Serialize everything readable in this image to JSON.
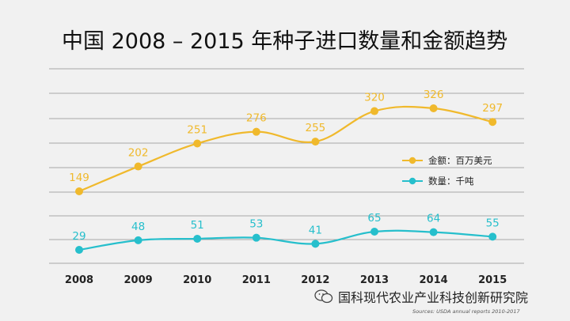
{
  "title": "中国 2008 – 2015 年种子进口数量和金额趋势",
  "chart_data": {
    "type": "line",
    "title": "中国 2008 – 2015 年种子进口数量和金额趋势",
    "categories": [
      "2008",
      "2009",
      "2010",
      "2011",
      "2012",
      "2013",
      "2014",
      "2015"
    ],
    "series": [
      {
        "name": "金额：百万美元",
        "values": [
          149,
          202,
          251,
          276,
          255,
          320,
          326,
          297
        ],
        "color": "#f0b92c"
      },
      {
        "name": "数量：千吨",
        "values": [
          29,
          48,
          51,
          53,
          41,
          65,
          64,
          55
        ],
        "color": "#26bfcc"
      }
    ],
    "grid": true,
    "legend_position": "right"
  },
  "footer": {
    "watermark": "国科现代农业产业科技创新研究院",
    "source": "Sources: USDA annual reports 2010-2017",
    "watermark_icon": "wechat-icon"
  }
}
